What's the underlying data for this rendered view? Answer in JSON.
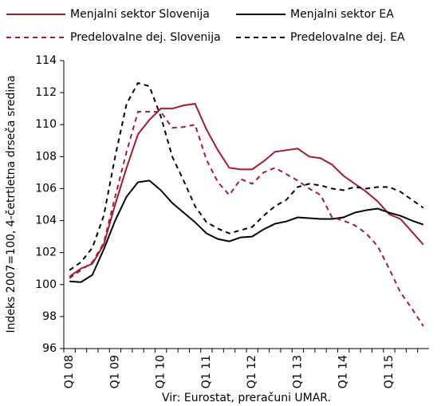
{
  "chart_data": {
    "type": "line",
    "y_label": "Indeks 2007=100, 4-četrtletna drseča sredina",
    "caption": "Vir: Eurostat, preračuni UMAR.",
    "categories": [
      "Q1 08",
      null,
      null,
      null,
      "Q1 09",
      null,
      null,
      null,
      "Q1 10",
      null,
      null,
      null,
      "Q1 11",
      null,
      null,
      null,
      "Q1 12",
      null,
      null,
      null,
      "Q1 13",
      null,
      null,
      null,
      "Q1 14",
      null,
      null,
      null,
      "Q1 15",
      null,
      null,
      null
    ],
    "series": [
      {
        "name": "Menjalni sektor Slovenija",
        "color": "#a6192e",
        "dashed": false,
        "values": [
          100.5,
          101.0,
          101.3,
          102.5,
          105.0,
          107.3,
          109.4,
          110.3,
          111.0,
          111.0,
          111.2,
          111.3,
          109.7,
          108.4,
          107.3,
          107.2,
          107.2,
          107.7,
          108.3,
          108.4,
          108.5,
          108.0,
          107.9,
          107.5,
          106.8,
          106.3,
          105.8,
          105.2,
          104.4,
          104.1,
          103.3,
          102.5
        ]
      },
      {
        "name": "Menjalni sektor EA",
        "color": "#000000",
        "dashed": false,
        "values": [
          100.2,
          100.15,
          100.6,
          102.2,
          104.0,
          105.5,
          106.4,
          106.5,
          105.9,
          105.1,
          104.5,
          103.9,
          103.2,
          102.85,
          102.7,
          102.95,
          103.0,
          103.45,
          103.8,
          103.95,
          104.2,
          104.15,
          104.1,
          104.1,
          104.2,
          104.5,
          104.65,
          104.75,
          104.5,
          104.3,
          104.0,
          103.75
        ]
      },
      {
        "name": "Predelovalne dej. Slovenija",
        "color": "#a6192e",
        "dashed": true,
        "values": [
          100.4,
          100.9,
          101.4,
          102.6,
          105.5,
          108.3,
          110.8,
          110.8,
          110.8,
          109.8,
          109.85,
          110.0,
          107.8,
          106.4,
          105.6,
          106.6,
          106.3,
          107.0,
          107.3,
          106.9,
          106.5,
          106.0,
          105.6,
          104.2,
          104.0,
          103.7,
          103.2,
          102.4,
          101.0,
          99.5,
          98.5,
          97.4
        ]
      },
      {
        "name": "Predelovalne dej. EA",
        "color": "#000000",
        "dashed": true,
        "values": [
          100.9,
          101.4,
          102.3,
          104.3,
          108.0,
          111.3,
          112.6,
          112.4,
          110.5,
          108.0,
          106.5,
          104.9,
          103.9,
          103.5,
          103.2,
          103.4,
          103.6,
          104.3,
          104.9,
          105.3,
          106.1,
          106.3,
          106.2,
          106.0,
          105.9,
          106.1,
          106.0,
          106.1,
          106.1,
          105.8,
          105.3,
          104.8
        ]
      }
    ],
    "ylim": [
      96,
      114
    ],
    "yticks": [
      96,
      98,
      100,
      102,
      104,
      106,
      108,
      110,
      112,
      114
    ]
  }
}
